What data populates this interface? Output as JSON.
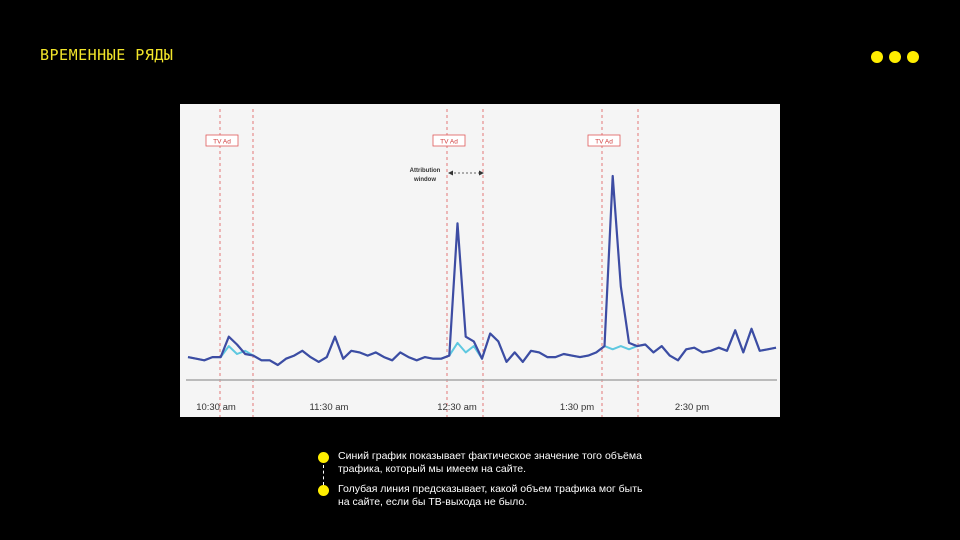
{
  "header": {
    "title": "ВРЕМЕННЫЕ РЯДЫ",
    "menu_icon": "three-dots-icon",
    "accent_color": "#ffee00"
  },
  "chart_data": {
    "type": "line",
    "title": "",
    "xlabel": "",
    "ylabel": "",
    "grid": false,
    "x_tick_labels": [
      "10:30 am",
      "11:30 am",
      "12:30 am",
      "1:30 pm",
      "2:30 pm"
    ],
    "annotations": {
      "tv_ad_label": "TV Ad",
      "attribution_label": [
        "Attribution",
        "window"
      ]
    },
    "series": [
      {
        "color": "#3d4ca3",
        "values": [
          5,
          4,
          3,
          5,
          5,
          18,
          13,
          7,
          6,
          3,
          3,
          0,
          4,
          6,
          9,
          5,
          2,
          5,
          18,
          4,
          9,
          8,
          6,
          8,
          5,
          3,
          8,
          5,
          3,
          5,
          4,
          4,
          6,
          90,
          18,
          15,
          4,
          20,
          15,
          2,
          8,
          2,
          9,
          8,
          5,
          5,
          7,
          6,
          5,
          6,
          8,
          12,
          120,
          50,
          14,
          12,
          13,
          8,
          12,
          6,
          3,
          10,
          11,
          8,
          9,
          11,
          9,
          22,
          8,
          23,
          9,
          10,
          11
        ]
      },
      {
        "color": "#5ec8e0",
        "values": [
          5,
          4,
          3,
          5,
          5,
          12,
          7,
          9,
          6,
          3,
          3,
          0,
          4,
          6,
          9,
          5,
          2,
          5,
          18,
          4,
          9,
          8,
          6,
          8,
          5,
          3,
          8,
          5,
          3,
          5,
          4,
          4,
          6,
          14,
          8,
          12,
          4,
          20,
          15,
          2,
          8,
          2,
          9,
          8,
          5,
          5,
          7,
          6,
          5,
          6,
          8,
          12,
          10,
          12,
          10,
          12,
          13,
          8,
          12,
          6,
          3,
          10,
          11,
          8,
          9,
          11,
          9,
          22,
          8,
          23,
          9,
          10,
          11
        ]
      }
    ]
  },
  "legend": {
    "items": [
      "Синий график показывает фактическое значение того объёма трафика, который мы имеем на сайте.",
      "Голубая линия предсказывает, какой объем трафика мог быть на сайте, если бы ТВ-выхода не было."
    ]
  }
}
